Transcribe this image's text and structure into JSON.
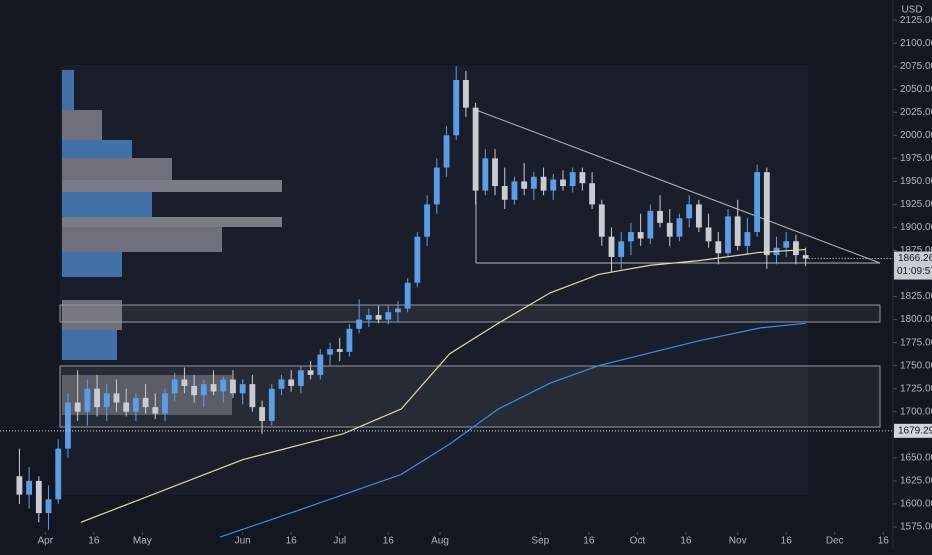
{
  "chart_data": {
    "type": "candlestick",
    "currency": "USD",
    "x": [
      -8,
      -5,
      -2,
      1,
      4,
      7,
      10,
      13,
      16,
      19,
      22,
      25,
      28,
      31,
      34,
      37,
      40,
      43,
      46,
      49,
      52,
      55,
      58,
      61,
      64,
      67,
      70,
      73,
      76,
      79,
      82,
      85,
      88,
      91,
      94,
      97,
      100,
      103,
      106,
      109,
      112,
      115,
      118,
      121,
      124,
      127,
      130,
      133,
      136,
      139,
      142,
      145,
      148,
      151,
      154,
      157,
      160,
      163,
      166,
      169,
      172,
      175,
      178,
      181,
      184,
      187,
      190,
      193,
      196,
      199,
      202,
      205,
      208,
      211,
      214,
      217,
      220,
      223,
      226,
      229,
      232,
      235
    ],
    "open": [
      1630,
      1610,
      1625,
      1590,
      1605,
      1660,
      1710,
      1700,
      1725,
      1705,
      1720,
      1710,
      1700,
      1715,
      1705,
      1698,
      1720,
      1735,
      1728,
      1718,
      1730,
      1722,
      1735,
      1720,
      1730,
      1705,
      1690,
      1725,
      1735,
      1728,
      1745,
      1740,
      1762,
      1768,
      1765,
      1790,
      1800,
      1805,
      1800,
      1808,
      1812,
      1840,
      1890,
      1925,
      1965,
      2000,
      2060,
      2030,
      1940,
      1975,
      1945,
      1930,
      1950,
      1942,
      1955,
      1940,
      1952,
      1945,
      1960,
      1948,
      1925,
      1890,
      1868,
      1885,
      1895,
      1888,
      1918,
      1905,
      1890,
      1910,
      1925,
      1900,
      1885,
      1872,
      1912,
      1880,
      1895,
      1960,
      1870,
      1878,
      1885,
      1870
    ],
    "high": [
      1660,
      1640,
      1630,
      1620,
      1670,
      1720,
      1745,
      1735,
      1740,
      1730,
      1735,
      1725,
      1720,
      1730,
      1720,
      1725,
      1742,
      1748,
      1740,
      1735,
      1745,
      1738,
      1745,
      1735,
      1740,
      1712,
      1730,
      1740,
      1745,
      1750,
      1755,
      1768,
      1775,
      1780,
      1795,
      1822,
      1812,
      1815,
      1815,
      1820,
      1845,
      1895,
      1935,
      1975,
      2010,
      2075,
      2070,
      2035,
      1985,
      1985,
      1965,
      1955,
      1970,
      1960,
      1965,
      1958,
      1962,
      1965,
      1965,
      1960,
      1930,
      1900,
      1895,
      1905,
      1915,
      1925,
      1935,
      1920,
      1915,
      1935,
      1930,
      1915,
      1895,
      1920,
      1930,
      1910,
      1968,
      1965,
      1890,
      1895,
      1892,
      1878
    ],
    "low": [
      1600,
      1595,
      1580,
      1572,
      1600,
      1650,
      1690,
      1685,
      1695,
      1690,
      1700,
      1695,
      1690,
      1698,
      1692,
      1690,
      1712,
      1720,
      1710,
      1705,
      1718,
      1710,
      1715,
      1708,
      1700,
      1676,
      1685,
      1718,
      1722,
      1720,
      1735,
      1735,
      1750,
      1755,
      1760,
      1785,
      1792,
      1796,
      1795,
      1798,
      1808,
      1835,
      1880,
      1915,
      1955,
      1995,
      2020,
      1925,
      1935,
      1935,
      1920,
      1925,
      1935,
      1930,
      1935,
      1930,
      1940,
      1938,
      1940,
      1920,
      1880,
      1852,
      1855,
      1870,
      1880,
      1882,
      1900,
      1880,
      1885,
      1900,
      1895,
      1878,
      1860,
      1868,
      1875,
      1870,
      1890,
      1855,
      1860,
      1868,
      1860,
      1858
    ],
    "close": [
      1610,
      1625,
      1590,
      1605,
      1660,
      1710,
      1700,
      1725,
      1705,
      1720,
      1710,
      1700,
      1715,
      1705,
      1698,
      1720,
      1735,
      1728,
      1718,
      1730,
      1722,
      1735,
      1720,
      1730,
      1705,
      1690,
      1725,
      1735,
      1728,
      1745,
      1740,
      1762,
      1768,
      1765,
      1790,
      1800,
      1805,
      1800,
      1808,
      1812,
      1840,
      1890,
      1925,
      1965,
      2000,
      2060,
      2030,
      1940,
      1975,
      1945,
      1930,
      1950,
      1942,
      1955,
      1940,
      1952,
      1945,
      1960,
      1948,
      1925,
      1890,
      1868,
      1885,
      1895,
      1888,
      1918,
      1905,
      1890,
      1910,
      1925,
      1900,
      1885,
      1872,
      1912,
      1880,
      1895,
      1960,
      1870,
      1878,
      1885,
      1870,
      1866.26
    ],
    "up_color": "#5b9ee6",
    "down_color": "#c9ccd3",
    "overlays": [
      {
        "color": "#e8d9a0",
        "x": [
          11,
          61,
          92,
          110,
          125,
          140,
          156,
          171,
          187,
          202,
          221,
          235
        ],
        "values": [
          1580,
          1648,
          1676,
          1703,
          1763,
          1796,
          1829,
          1849,
          1859,
          1864,
          1873,
          1876
        ]
      },
      {
        "color": "#3d8be8",
        "x": [
          54,
          79,
          110,
          125,
          140,
          156,
          171,
          187,
          202,
          221,
          235
        ],
        "values": [
          1564,
          1594,
          1632,
          1665,
          1703,
          1731,
          1750,
          1764,
          1777,
          1791,
          1796
        ]
      }
    ],
    "xlim": [
      -14,
      262
    ],
    "xticks": [
      {
        "value": 0,
        "label": "Apr"
      },
      {
        "value": 15,
        "label": "16"
      },
      {
        "value": 30,
        "label": "May"
      },
      {
        "value": 61,
        "label": "Jun"
      },
      {
        "value": 76,
        "label": "16"
      },
      {
        "value": 91,
        "label": "Jul"
      },
      {
        "value": 106,
        "label": "16"
      },
      {
        "value": 122,
        "label": "Aug"
      },
      {
        "value": 153,
        "label": "Sep"
      },
      {
        "value": 168,
        "label": "16"
      },
      {
        "value": 183,
        "label": "Oct"
      },
      {
        "value": 198,
        "label": "16"
      },
      {
        "value": 214,
        "label": "Nov"
      },
      {
        "value": 229,
        "label": "16"
      },
      {
        "value": 244,
        "label": "Dec"
      },
      {
        "value": 259,
        "label": "16"
      }
    ],
    "ylim": [
      1569.5,
      2136
    ],
    "yticks": [
      {
        "value": 1575,
        "label": "1575.00"
      },
      {
        "value": 1600,
        "label": "1600.00"
      },
      {
        "value": 1625,
        "label": "1625.00"
      },
      {
        "value": 1650,
        "label": "1650.00"
      },
      {
        "value": 1675,
        "label": "1675.00"
      },
      {
        "value": 1700,
        "label": "1700.00"
      },
      {
        "value": 1725,
        "label": "1725.00"
      },
      {
        "value": 1750,
        "label": "1750.00"
      },
      {
        "value": 1775,
        "label": "1775.00"
      },
      {
        "value": 1800,
        "label": "1800.00"
      },
      {
        "value": 1825,
        "label": "1825.00"
      },
      {
        "value": 1850,
        "label": "1850.00"
      },
      {
        "value": 1875,
        "label": "1875.00"
      },
      {
        "value": 1900,
        "label": "1900.00"
      },
      {
        "value": 1925,
        "label": "1925.00"
      },
      {
        "value": 1950,
        "label": "1950.00"
      },
      {
        "value": 1975,
        "label": "1975.00"
      },
      {
        "value": 2000,
        "label": "2000.00"
      },
      {
        "value": 2025,
        "label": "2025.00"
      },
      {
        "value": 2050,
        "label": "2050.00"
      },
      {
        "value": 2075,
        "label": "2075.00"
      },
      {
        "value": 2100,
        "label": "2100.00"
      },
      {
        "value": 2125,
        "label": "2125.00"
      }
    ],
    "last_price": 1866.26,
    "countdown": "01:09:57",
    "level_line": 1679.29
  }
}
